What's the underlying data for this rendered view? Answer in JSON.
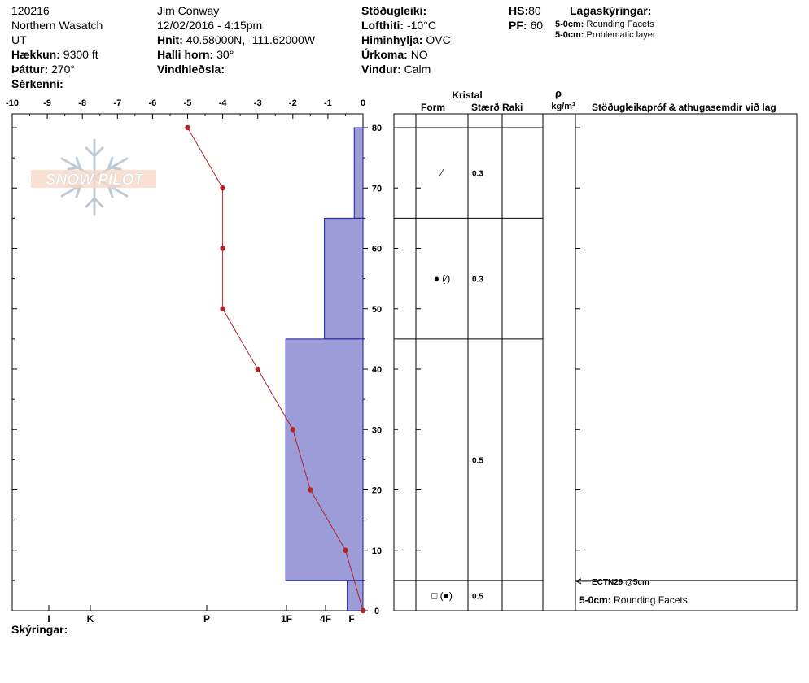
{
  "header": {
    "col1": {
      "id": "120216",
      "range": "Northern Wasatch",
      "state": "UT",
      "elevation_label": "Hækkun:",
      "elevation": "9300 ft",
      "aspect_label": "Þáttur:",
      "aspect": "270°",
      "features_label": "Sérkenni:"
    },
    "col2": {
      "observer": "Jim Conway",
      "datetime": "12/02/2016 - 4:15pm",
      "coords_label": "Hnit:",
      "coords": "40.58000N, -111.62000W",
      "slope_label": "Halli horn:",
      "slope": "30°",
      "wind_loading_label": "Vindhleðsla:"
    },
    "col3": {
      "stability_label": "Stöðugleiki:",
      "air_temp_label": "Lofthiti:",
      "air_temp": "-10°C",
      "sky_label": "Himinhylja:",
      "sky": "OVC",
      "precip_label": "Úrkoma:",
      "precip": "NO",
      "wind_label": "Vindur:",
      "wind": "Calm"
    },
    "col4": {
      "hs_label": "HS:",
      "hs": "80",
      "pf_label": "PF:",
      "pf": "60"
    },
    "layers_title": "Lagaskýringar:",
    "layers": [
      {
        "depth": "5-0cm:",
        "text": "Rounding Facets"
      },
      {
        "depth": "5-0cm:",
        "text": "Problematic layer"
      }
    ]
  },
  "footer": {
    "notes_label": "Skýringar:"
  },
  "table_headers": {
    "crystal": "Kristal",
    "form": "Form",
    "size": "Stærð",
    "moisture": "Raki",
    "rho": "ρ",
    "density_unit": "kg/m³",
    "tests": "Stöðugleikapróf & athugasemdir við lag"
  },
  "logo_text": "SNOW PILOT",
  "chart_data": {
    "type": "snow-profile",
    "temperature_axis": {
      "ticks": [
        "-10",
        "-9",
        "-8",
        "-7",
        "-6",
        "-5",
        "-4",
        "-3",
        "-2",
        "-1",
        "0"
      ],
      "range": [
        -10,
        0
      ]
    },
    "hardness_axis": {
      "ticks": [
        "I",
        "K",
        "P",
        "1F",
        "4F",
        "F"
      ]
    },
    "height_axis": {
      "ticks": [
        "0",
        "10",
        "20",
        "30",
        "40",
        "50",
        "60",
        "70",
        "80"
      ],
      "range": [
        0,
        80
      ]
    },
    "temperature_profile": [
      {
        "height": 80,
        "temp": -5
      },
      {
        "height": 70,
        "temp": -4
      },
      {
        "height": 60,
        "temp": -4
      },
      {
        "height": 50,
        "temp": -4
      },
      {
        "height": 40,
        "temp": -3
      },
      {
        "height": 30,
        "temp": -2
      },
      {
        "height": 20,
        "temp": -1.5
      },
      {
        "height": 10,
        "temp": -0.5
      },
      {
        "height": 0,
        "temp": 0
      }
    ],
    "hardness_layers": [
      {
        "top": 80,
        "bottom": 65,
        "temp_equiv": -0.25
      },
      {
        "top": 65,
        "bottom": 45,
        "temp_equiv": -1.1
      },
      {
        "top": 45,
        "bottom": 5,
        "temp_equiv": -2.2
      },
      {
        "top": 5,
        "bottom": 0,
        "temp_equiv": -0.45
      }
    ],
    "layers": [
      {
        "top": 80,
        "bottom": 65,
        "form": "⁄",
        "size": "0.3"
      },
      {
        "top": 65,
        "bottom": 45,
        "form": "● (⁄)",
        "size": "0.3"
      },
      {
        "top": 45,
        "bottom": 5,
        "form": "",
        "size": "0.5"
      },
      {
        "top": 5,
        "bottom": 0,
        "form": "□ (●)",
        "size": "0.5"
      }
    ],
    "tests": [
      {
        "height": 5,
        "text": "ECTN29 @5cm"
      }
    ],
    "layer_comments": [
      {
        "depth": "5-0cm:",
        "text": "Rounding Facets"
      }
    ],
    "colors": {
      "hardness_fill": "#9c9cd9",
      "hardness_stroke": "#1a1a99",
      "temp_line": "#b32424"
    }
  }
}
